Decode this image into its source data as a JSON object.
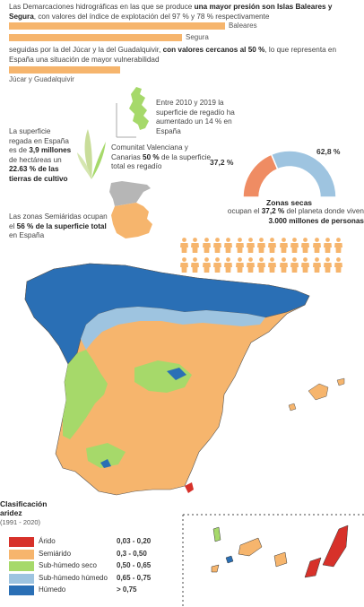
{
  "intro": {
    "text1": "Las Demarcaciones hidrográficas en las que se produce ",
    "text1_bold": "una mayor presión son Islas Baleares y Segura",
    "text1_end": ", con valores del índice de explotación del 97 % y 78 % respectivamente",
    "text2": "seguidas por la del Júcar y la del Guadalquivir, ",
    "text2_bold": "con valores cercanos al 50 %",
    "text2_end": ", lo que representa en España una situación de mayor vulnerabilidad"
  },
  "chart_data": {
    "type": "bar",
    "categories": [
      "Baleares",
      "Segura",
      "Júcar y Guadalquivir"
    ],
    "values": [
      97,
      78,
      50
    ],
    "title": "",
    "xlabel": "",
    "ylabel": ""
  },
  "regadio": {
    "text": "Entre 2010 y 2019 la superficie de regadío ha aumentado un 14 % en España"
  },
  "superficie": {
    "pre": "La superficie regada en España es de ",
    "bold": "3,9 millones",
    "mid": " de hectáreas un ",
    "bold2": "22.63 % de las tierras de cultivo"
  },
  "comunitat": {
    "pre": "Comunitat Valenciana y Canarias ",
    "bold": "50 %",
    "end": " de la superficie total es regadío"
  },
  "semiaridas": {
    "pre": "Las zonas Semiáridas ocupan el ",
    "bold": "56 % de la superficie total",
    "end": " en España"
  },
  "donut": {
    "slices": [
      {
        "label": "37,2 %",
        "value": 37.2,
        "color": "#ef8c63"
      },
      {
        "label": "62,8 %",
        "value": 62.8,
        "color": "#9ec4e0"
      }
    ],
    "title": "Zonas secas",
    "text_pre": "ocupan el ",
    "text_bold": "37,2 %",
    "text_mid": " del planeta donde viven ",
    "text_bold2": "3.000 millones de personas",
    "people_total": 30,
    "people_highlight": 30,
    "people_color": "#f6b56d"
  },
  "legend": {
    "title": "Clasificación aridez",
    "period": "(1991 - 2020)",
    "items": [
      {
        "label": "Árido",
        "range": "0,03 - 0,20",
        "color": "#d7312a"
      },
      {
        "label": "Semiárido",
        "range": "0,3 - 0,50",
        "color": "#f6b56d"
      },
      {
        "label": "Sub-húmedo seco",
        "range": "0,50 - 0,65",
        "color": "#a6d96a"
      },
      {
        "label": "Sub-húmedo húmedo",
        "range": "0,65 - 0,75",
        "color": "#9ec4e0"
      },
      {
        "label": "Húmedo",
        "range": "> 0,75",
        "color": "#2a6fb5"
      }
    ]
  }
}
